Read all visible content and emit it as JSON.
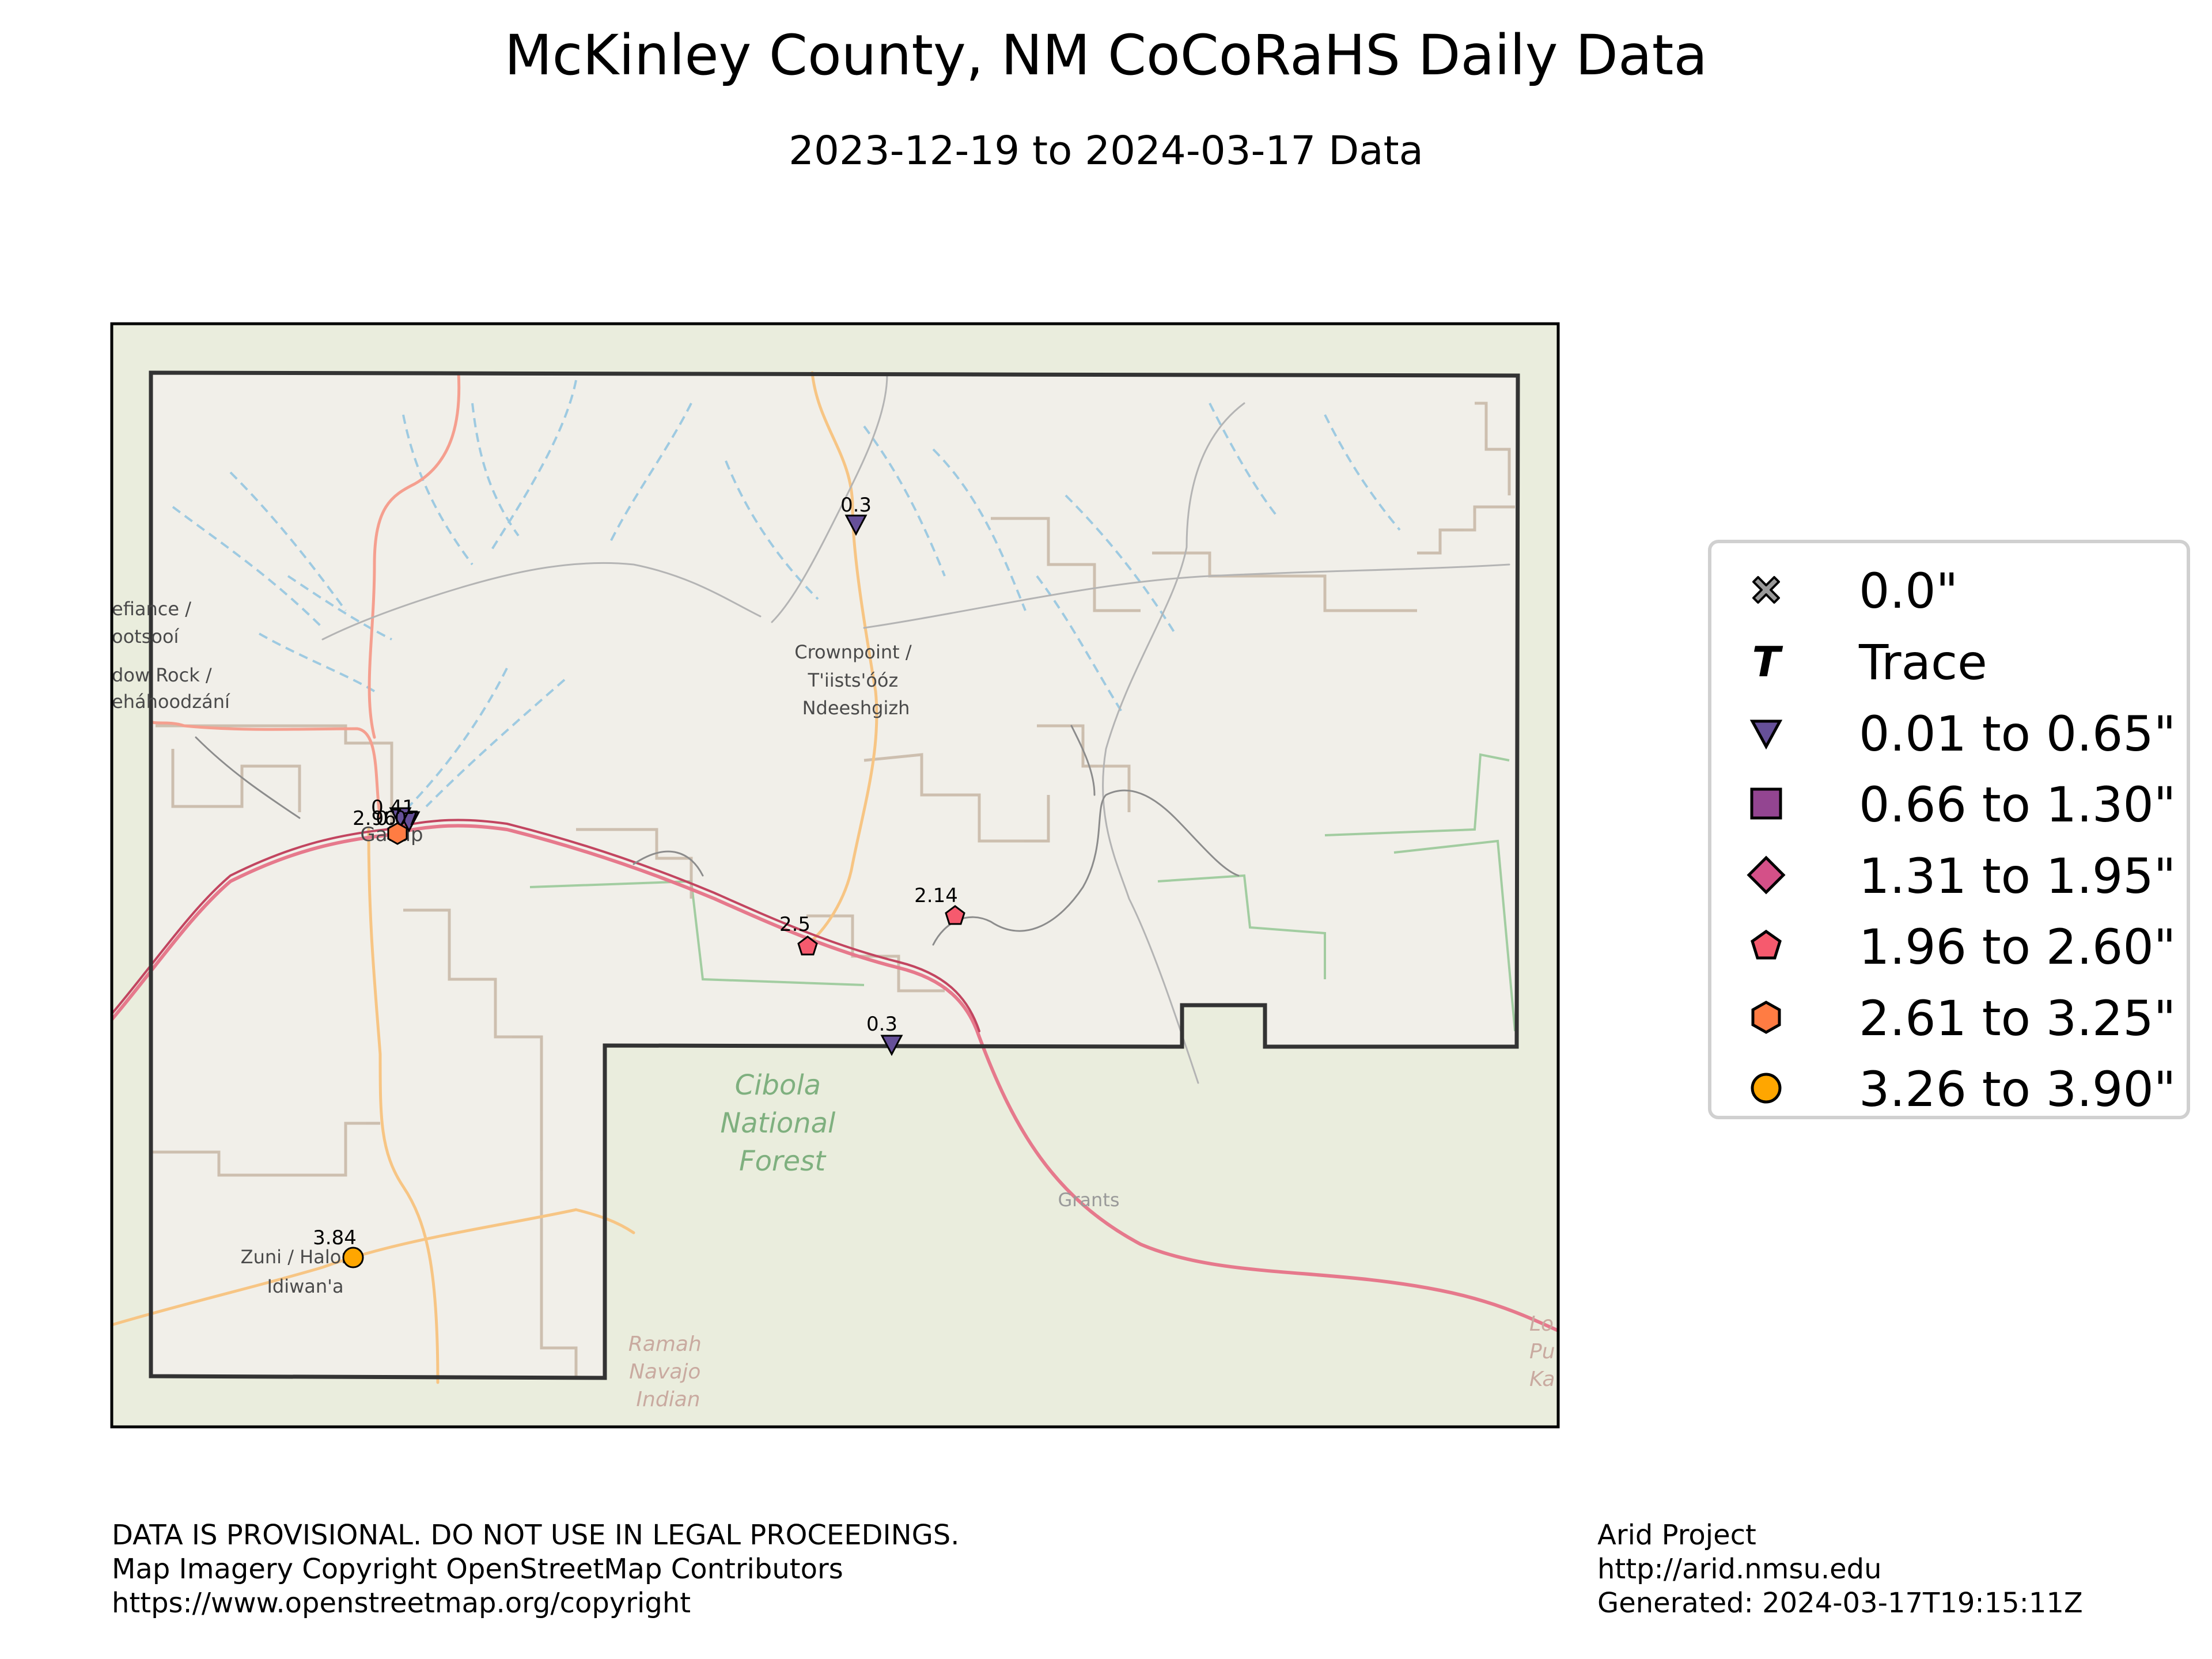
{
  "title": "McKinley County, NM CoCoRaHS Daily Data",
  "subtitle": "2023-12-19 to 2024-03-17 Data",
  "map": {
    "places": [
      {
        "name": "Crownpoint / T'iists'óóz Ndeeshgizh",
        "lines": [
          "Crownpoint /",
          "T'iists'óóz",
          "Ndeeshgizh"
        ]
      },
      {
        "name": "Gallup",
        "lines": [
          "Gallup"
        ]
      },
      {
        "name": "Zuni / Halona Idiwan'a",
        "lines": [
          "Zuni / Halona",
          "Idiwan'a"
        ]
      },
      {
        "name": "Cibola National Forest",
        "lines": [
          "Cibola",
          "National",
          "Forest"
        ]
      },
      {
        "name": "Grants",
        "lines": [
          "Grants"
        ]
      },
      {
        "name": "Ramah Navajo Indian",
        "lines": [
          "Ramah",
          "Navajo",
          "Indian"
        ]
      },
      {
        "name": "Fort Defiance / Tséhootsooí (partial)",
        "lines": [
          "efiance /",
          "ootsooí"
        ]
      },
      {
        "name": "Window Rock / Tségháhoodzání (partial)",
        "lines": [
          "dow Rock /",
          "eháhoodzání"
        ]
      },
      {
        "name": "Los Lunas (partial)",
        "lines": [
          "Lo",
          "Pu",
          "Ka"
        ]
      }
    ],
    "observations": [
      {
        "value": 0.3,
        "label": "0.3",
        "category": "0.01 to 0.65\"",
        "site": "north of Crownpoint"
      },
      {
        "value": 0.41,
        "label": "0.41",
        "category": "0.01 to 0.65\"",
        "site": "Gallup"
      },
      {
        "value": 0.07,
        "label": "0.07",
        "category": "0.01 to 0.65\"",
        "site": "Gallup"
      },
      {
        "value": 2.96,
        "label": "2.96",
        "category": "2.61 to 3.25\"",
        "site": "Gallup"
      },
      {
        "value": 2.5,
        "label": "2.5",
        "category": "1.96 to 2.60\"",
        "site": "Thoreau"
      },
      {
        "value": 2.14,
        "label": "2.14",
        "category": "1.96 to 2.60\"",
        "site": "east of Thoreau"
      },
      {
        "value": 0.3,
        "label": "0.3",
        "category": "0.01 to 0.65\"",
        "site": "south of Thoreau"
      },
      {
        "value": 3.84,
        "label": "3.84",
        "category": "3.26 to 3.90\"",
        "site": "Zuni"
      }
    ]
  },
  "legend": {
    "items": [
      {
        "label": "0.0\"",
        "symbol": "x-icon",
        "color": "#999999"
      },
      {
        "label": "Trace",
        "symbol": "t-icon",
        "color": "#000000"
      },
      {
        "label": "0.01 to 0.65\"",
        "symbol": "down-triangle-icon",
        "color": "#665099"
      },
      {
        "label": "0.66 to 1.30\"",
        "symbol": "square-icon",
        "color": "#934591"
      },
      {
        "label": "1.31 to 1.95\"",
        "symbol": "diamond-icon",
        "color": "#d45088"
      },
      {
        "label": "1.96 to 2.60\"",
        "symbol": "pentagon-icon",
        "color": "#f65a6e"
      },
      {
        "label": "2.61 to 3.25\"",
        "symbol": "hexagon-icon",
        "color": "#ff7c43"
      },
      {
        "label": "3.26 to 3.90\"",
        "symbol": "circle-icon",
        "color": "#ffa600"
      }
    ]
  },
  "footer": {
    "left": [
      "DATA IS PROVISIONAL. DO NOT USE IN LEGAL PROCEEDINGS.",
      "Map Imagery Copyright OpenStreetMap Contributors",
      "https://www.openstreetmap.org/copyright"
    ],
    "right": [
      "Arid Project",
      "http://arid.nmsu.edu",
      "Generated: 2024-03-17T19:15:11Z"
    ]
  }
}
